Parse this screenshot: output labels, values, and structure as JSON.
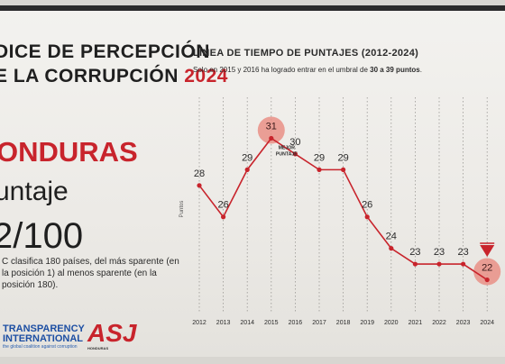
{
  "slide": {
    "title_line1": "DICE DE PERCEPCIÓN",
    "title_line2_prefix": "E LA CORRUPCIÓN ",
    "title_year": "2024",
    "country": "ONDURAS",
    "score_label": "untaje",
    "score_value": "2/100",
    "description": "C clasifica 180 países, del más sparente (en la posición 1) al menos sparente (en la posición 180).",
    "logo_ti_line1": "TRANSPARENCY",
    "logo_ti_line2": "INTERNATIONAL",
    "logo_ti_tagline": "the global coalition against corruption",
    "logo_asj": "ASJ",
    "logo_asj_tagline": "HONDURAS"
  },
  "chart_header": {
    "title": "LÍNEA DE TIEMPO DE PUNTAJES (2012-2024)",
    "subtitle_prefix": "Solo en 2015 y 2016 ha logrado entrar en el umbral de ",
    "subtitle_bold": "30 a 39 puntos",
    "subtitle_suffix": "."
  },
  "colors": {
    "accent": "#c8242c",
    "line": "#c8242c",
    "grid": "#9a9894",
    "text": "#2b2b2b"
  },
  "chart_data": {
    "type": "line",
    "title": "LÍNEA DE TIEMPO DE PUNTAJES (2012-2024)",
    "xlabel": "",
    "ylabel": "Puntos",
    "x": [
      "2012",
      "2013",
      "2014",
      "2015",
      "2016",
      "2017",
      "2018",
      "2019",
      "2020",
      "2021",
      "2022",
      "2023",
      "2024"
    ],
    "series": [
      {
        "values": [
          28,
          26,
          29,
          31,
          30,
          29,
          29,
          26,
          24,
          23,
          23,
          23,
          22
        ]
      }
    ],
    "ylim": [
      21,
      32
    ],
    "grid": "vertical",
    "annotations": [
      {
        "x": "2015",
        "text": "MEJOR PUNTAJE"
      }
    ],
    "highlighted_points": [
      "2015",
      "2024"
    ],
    "marker_arrow_year": "2024"
  }
}
